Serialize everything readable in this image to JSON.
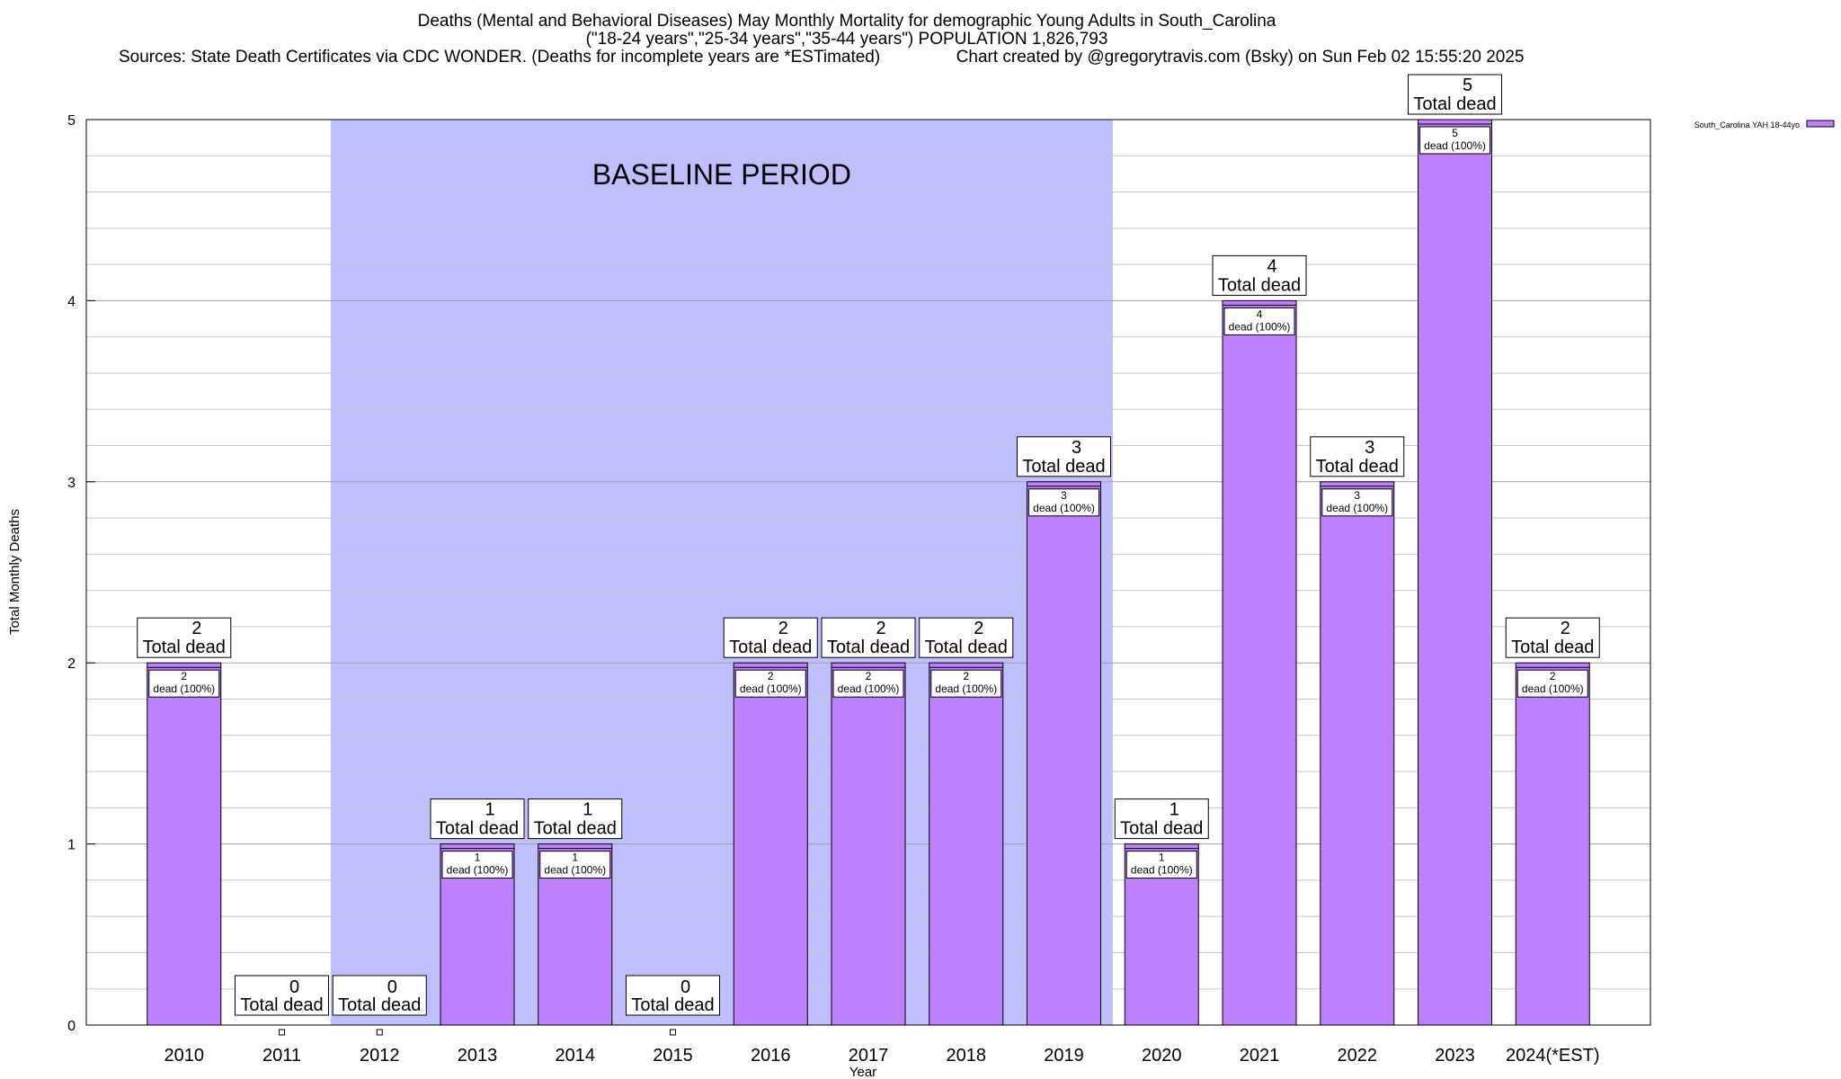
{
  "titles": {
    "line1": "Deaths (Mental and Behavioral Diseases) May Monthly Mortality for demographic Young Adults in South_Carolina",
    "line2": "(\"18-24 years\",\"25-34 years\",\"35-44 years\") POPULATION 1,826,793",
    "line3": "Sources: State Death Certificates via CDC WONDER. (Deaths for incomplete years are *ESTimated)                Chart created by @gregorytravis.com (Bsky) on Sun Feb 02 15:55:20 2025"
  },
  "chart_data": {
    "type": "bar",
    "xlabel": "Year",
    "ylabel": "Total Monthly Deaths",
    "ylim": [
      0,
      5
    ],
    "yticks": [
      0,
      1,
      2,
      3,
      4,
      5
    ],
    "grid": true,
    "categories": [
      "2010",
      "2011",
      "2012",
      "2013",
      "2014",
      "2015",
      "2016",
      "2017",
      "2018",
      "2019",
      "2020",
      "2021",
      "2022",
      "2023",
      "2024(*EST)"
    ],
    "series": [
      {
        "name": "South_Carolina YAH 18-44yo",
        "color": "#bf80ff",
        "values": [
          2,
          0,
          0,
          1,
          1,
          0,
          2,
          2,
          2,
          3,
          1,
          4,
          3,
          5,
          2
        ]
      }
    ],
    "total_label_text": "Total dead",
    "inner_label_text": "dead (100%)",
    "legend_position": "top-right",
    "annotation": {
      "text": "BASELINE PERIOD",
      "from": "2012",
      "to": "2019",
      "color": "#bfbfff"
    }
  }
}
